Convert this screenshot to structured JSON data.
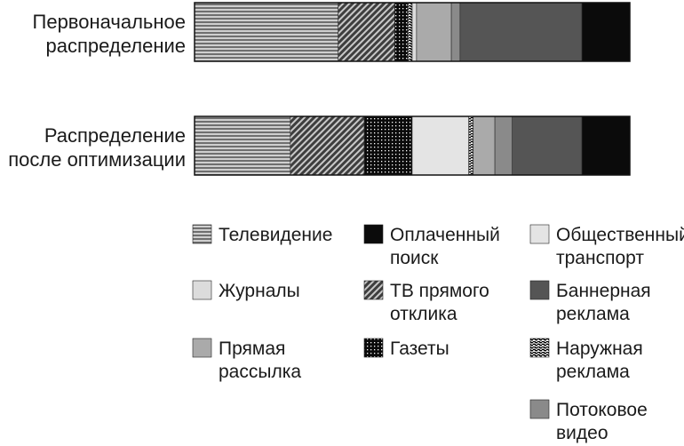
{
  "chart_data": {
    "type": "bar",
    "orientation": "horizontal",
    "stacked": true,
    "normalized": true,
    "unit": "share of budget",
    "categories": [
      [
        "Первоначальное",
        "распределение"
      ],
      [
        "Распределение",
        "после оптимизации"
      ]
    ],
    "series": [
      {
        "name": [
          "Телевидение"
        ],
        "values": [
          0.33,
          0.22
        ],
        "pattern": "hstripes",
        "color": "#8c8c8c"
      },
      {
        "name": [
          "ТВ прямого",
          "отклика"
        ],
        "values": [
          0.13,
          0.17
        ],
        "pattern": "diagonal",
        "color": "#6e6e6e"
      },
      {
        "name": [
          "Газеты"
        ],
        "values": [
          0.03,
          0.11
        ],
        "pattern": "dots",
        "color": "#111111"
      },
      {
        "name": [
          "Общественный",
          "транспорт"
        ],
        "values": [
          0.0,
          0.13
        ],
        "pattern": "solid",
        "color": "#e4e4e4"
      },
      {
        "name": [
          "Наружная",
          "реклама"
        ],
        "values": [
          0.01,
          0.01
        ],
        "pattern": "wavy",
        "color": "#222222"
      },
      {
        "name": [
          "Журналы"
        ],
        "values": [
          0.01,
          0.0
        ],
        "pattern": "solid",
        "color": "#dcdcdc"
      },
      {
        "name": [
          "Прямая",
          "рассылка"
        ],
        "values": [
          0.08,
          0.05
        ],
        "pattern": "solid",
        "color": "#aaaaaa"
      },
      {
        "name": [
          "Потоковое",
          "видео"
        ],
        "values": [
          0.02,
          0.04
        ],
        "pattern": "solid",
        "color": "#8a8a8a"
      },
      {
        "name": [
          "Баннерная",
          "реклама"
        ],
        "values": [
          0.28,
          0.16
        ],
        "pattern": "solid",
        "color": "#555555"
      },
      {
        "name": [
          "Оплаченный",
          "поиск"
        ],
        "values": [
          0.11,
          0.11
        ],
        "pattern": "solid",
        "color": "#0b0b0b"
      }
    ],
    "legend": {
      "placement": "bottom",
      "order": [
        [
          "Телевидение",
          "Оплаченный поиск",
          "Общественный транспорт"
        ],
        [
          "Журналы",
          "ТВ прямого отклика",
          "Баннерная реклама"
        ],
        [
          "Прямая рассылка",
          "Газеты",
          "Наружная реклама"
        ],
        [
          "",
          "",
          "Потоковое видео"
        ]
      ]
    },
    "grid": false,
    "title": "",
    "xlabel": "",
    "ylabel": ""
  }
}
